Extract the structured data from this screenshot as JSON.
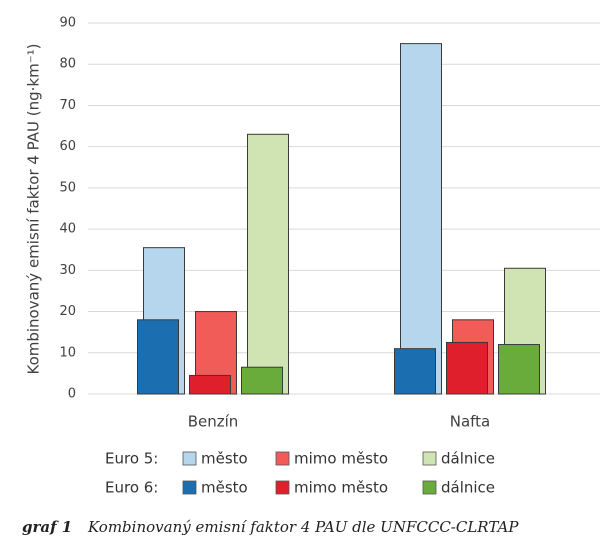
{
  "chart_data": {
    "type": "bar",
    "caption_number": "graf 1",
    "title": "Kombinovaný emisní faktor 4 PAU dle UNFCCC-CLRTAP",
    "y_label": "Kombinovaný emisní faktor 4 PAU (ng·km⁻¹)",
    "categories": [
      "Benzín",
      "Nafta"
    ],
    "legend_groups": [
      "Euro 5:",
      "Euro 6:"
    ],
    "series": [
      {
        "name": "město",
        "color": "#b5d6ec",
        "values": [
          35.5,
          85
        ]
      },
      {
        "name": "mimo město",
        "color": "#f15b58",
        "values": [
          20,
          18
        ]
      },
      {
        "name": "dálnice",
        "color": "#d0e4b3",
        "values": [
          63,
          30.5
        ]
      },
      {
        "name": "město",
        "color": "#1b6eaf",
        "values": [
          18,
          11
        ]
      },
      {
        "name": "mimo město",
        "color": "#df1f2b",
        "values": [
          4.5,
          12.5
        ]
      },
      {
        "name": "dálnice",
        "color": "#6aac3b",
        "values": [
          6.5,
          12
        ]
      }
    ],
    "ylim": [
      0,
      90
    ],
    "yticks": [
      0,
      10,
      20,
      30,
      40,
      50,
      60,
      70,
      80,
      90
    ],
    "grid": true
  }
}
